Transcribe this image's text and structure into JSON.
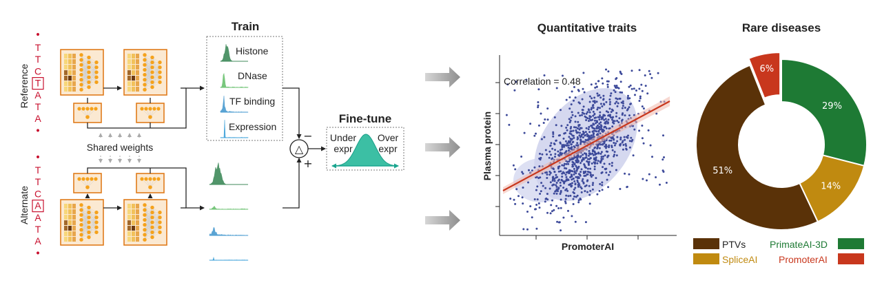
{
  "train": {
    "title": "Train",
    "tracks": [
      "Histone",
      "DNase",
      "TF binding",
      "Expression"
    ],
    "track_colors": [
      "#3f8a5a",
      "#6bc270",
      "#4a9bd0",
      "#3a9fd8"
    ]
  },
  "sequences": {
    "reference_label": "Reference",
    "alternate_label": "Alternate",
    "reference_bases": [
      "T",
      "T",
      "C",
      "T",
      "A",
      "T",
      "A"
    ],
    "alternate_bases": [
      "T",
      "T",
      "C",
      "A",
      "A",
      "T",
      "A"
    ],
    "variant_index": 3,
    "dot": "•"
  },
  "shared_weights": "Shared weights",
  "diff_symbols": {
    "delta": "△",
    "minus": "−",
    "plus": "+"
  },
  "finetune": {
    "title": "Fine-tune",
    "under_line1": "Under",
    "under_line2": "expr",
    "over_line1": "Over",
    "over_line2": "expr"
  },
  "quantitative": {
    "title": "Quantitative traits",
    "annotation": "Correlation = 0.48",
    "chart_data": {
      "type": "scatter",
      "xlabel": "PromoterAI",
      "ylabel": "Plasma protein",
      "correlation": 0.48,
      "regression": "linear fit with confidence band",
      "grid": false
    }
  },
  "rare": {
    "title": "Rare diseases",
    "chart_data": {
      "type": "pie",
      "donut": true,
      "categories": [
        "PTVs",
        "PrimateAI-3D",
        "SpliceAI",
        "PromoterAI"
      ],
      "values": [
        51,
        29,
        14,
        6
      ],
      "labels": [
        "51%",
        "29%",
        "14%",
        "6%"
      ],
      "colors": [
        "#5a3208",
        "#1e7a34",
        "#c08a10",
        "#c8371d"
      ],
      "exploded": "PromoterAI",
      "legend_position": "bottom"
    },
    "legend": [
      {
        "label": "PTVs",
        "color": "#5a3208"
      },
      {
        "label": "PrimateAI-3D",
        "color": "#1e7a34"
      },
      {
        "label": "SpliceAI",
        "color": "#c08a10"
      },
      {
        "label": "PromoterAI",
        "color": "#c8371d"
      }
    ]
  }
}
